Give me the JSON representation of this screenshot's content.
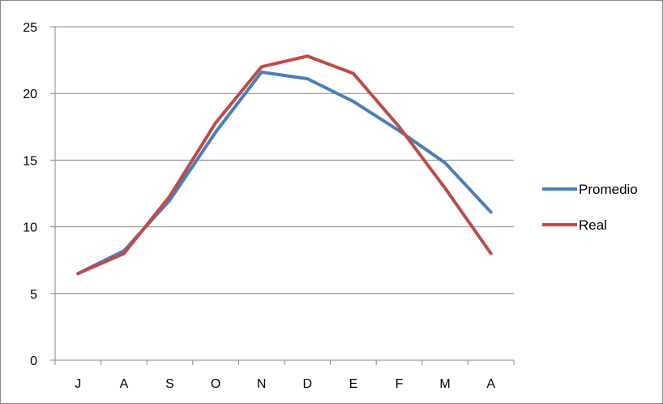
{
  "chart_data": {
    "type": "line",
    "title": "",
    "xlabel": "",
    "ylabel": "",
    "categories": [
      "J",
      "A",
      "S",
      "O",
      "N",
      "D",
      "E",
      "F",
      "M",
      "A"
    ],
    "ylim": [
      0,
      25
    ],
    "yticks": [
      0,
      5,
      10,
      15,
      20,
      25
    ],
    "grid": true,
    "legend_position": "right",
    "series": [
      {
        "name": "Promedio",
        "color": "#4A7EBB",
        "values": [
          6.5,
          8.2,
          12.0,
          17.1,
          21.6,
          21.1,
          19.4,
          17.2,
          14.8,
          11.1
        ]
      },
      {
        "name": "Real",
        "color": "#BE4B48",
        "values": [
          6.5,
          8.0,
          12.3,
          17.8,
          22.0,
          22.8,
          21.5,
          17.5,
          12.9,
          8.0
        ]
      }
    ]
  }
}
